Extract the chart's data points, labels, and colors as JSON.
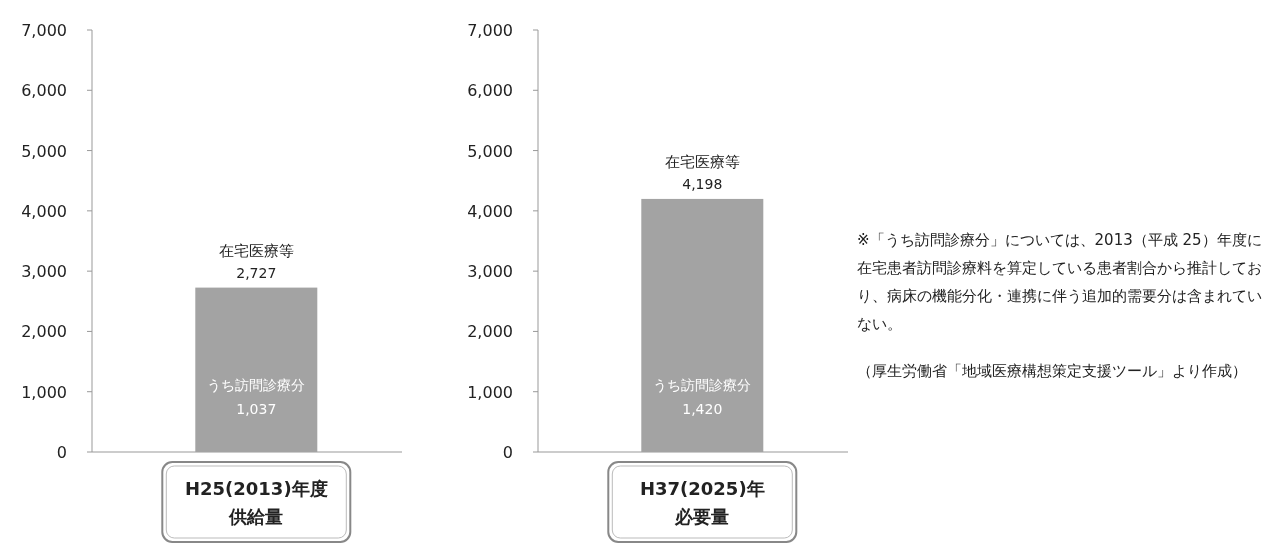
{
  "chart_data": [
    {
      "type": "bar",
      "categories": [
        "H25(2013)年度供給量"
      ],
      "series": [
        {
          "name": "在宅医療等",
          "color": "#a3a3a3",
          "values": [
            2727
          ],
          "value_labels": [
            "2,727"
          ]
        }
      ],
      "ylim": [
        0,
        7000
      ],
      "yticks": [
        {
          "value": 0,
          "label": "0"
        },
        {
          "value": 1000,
          "label": "1,000"
        },
        {
          "value": 2000,
          "label": "2,000"
        },
        {
          "value": 3000,
          "label": "3,000"
        },
        {
          "value": 4000,
          "label": "4,000"
        },
        {
          "value": 5000,
          "label": "5,000"
        },
        {
          "value": 6000,
          "label": "6,000"
        },
        {
          "value": 7000,
          "label": "7,000"
        }
      ],
      "annotations": [
        "うち訪問診療分\n1,037"
      ],
      "grid": false
    },
    {
      "type": "bar",
      "categories": [
        "H37(2025)年必要量"
      ],
      "series": [
        {
          "name": "在宅医療等",
          "color": "#a3a3a3",
          "values": [
            4198
          ],
          "value_labels": [
            "4,198"
          ]
        }
      ],
      "ylim": [
        0,
        7000
      ],
      "yticks": [
        {
          "value": 0,
          "label": "0"
        },
        {
          "value": 1000,
          "label": "1,000"
        },
        {
          "value": 2000,
          "label": "2,000"
        },
        {
          "value": 3000,
          "label": "3,000"
        },
        {
          "value": 4000,
          "label": "4,000"
        },
        {
          "value": 5000,
          "label": "5,000"
        },
        {
          "value": 6000,
          "label": "6,000"
        },
        {
          "value": 7000,
          "label": "7,000"
        }
      ],
      "annotations": [
        "うち訪問診療分\n1,420",
        "※「うち訪問診療分」については、2013（平成 25）年度に在宅患者訪問診療料を算定している患者割合から推計しており、病床の機能分化・連携に伴う追加的需要分は含まれていない。",
        "（厚生労働省「地域医療構想策定支援ツール」より作成）"
      ],
      "grid": false
    }
  ]
}
